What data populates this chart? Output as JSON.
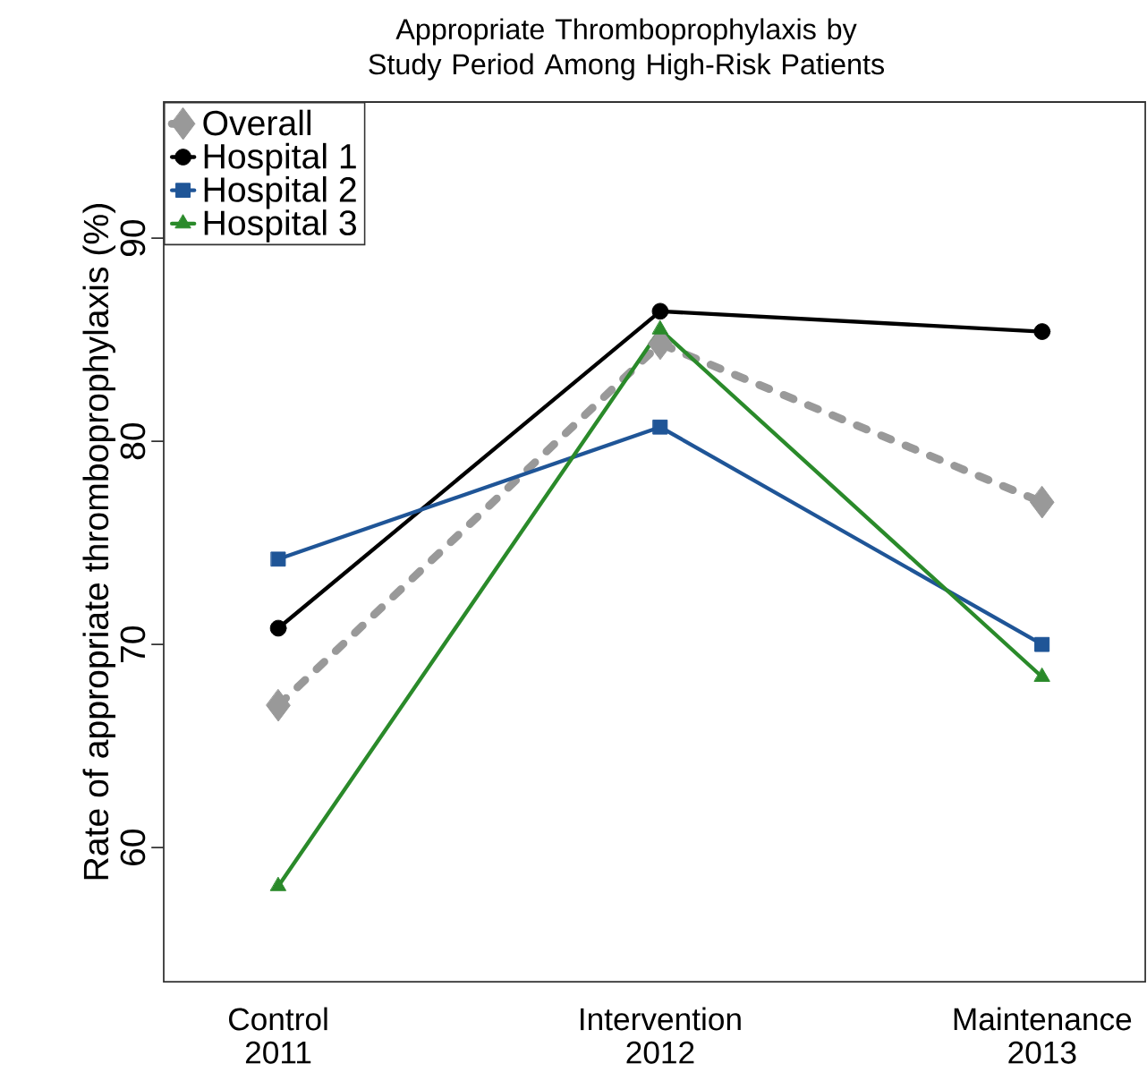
{
  "chart_data": {
    "type": "line",
    "title": "Appropriate Thromboprophylaxis by Study Period Among High-Risk Patients",
    "ylabel": "Rate of appropriate thromboprophylaxis (%)",
    "categories": [
      "Control 2011",
      "Intervention 2012",
      "Maintenance 2013"
    ],
    "series": [
      {
        "name": "Overall",
        "color": "#999999",
        "values": [
          67.0,
          84.8,
          77.0
        ],
        "marker": "diamond",
        "line_style": "dashed"
      },
      {
        "name": "Hospital 1",
        "color": "#000000",
        "values": [
          70.8,
          86.4,
          85.4
        ],
        "marker": "circle",
        "line_style": "solid"
      },
      {
        "name": "Hospital 2",
        "color": "#1f5597",
        "values": [
          74.2,
          80.7,
          70.0
        ],
        "marker": "square",
        "line_style": "solid"
      },
      {
        "name": "Hospital 3",
        "color": "#2a8a2a",
        "values": [
          58.1,
          85.5,
          68.4
        ],
        "marker": "triangle",
        "line_style": "solid"
      }
    ],
    "ylim": [
      53.4,
      96.7
    ],
    "yticks": [
      60,
      70,
      80,
      90
    ],
    "legend": "top left",
    "grid": false
  }
}
